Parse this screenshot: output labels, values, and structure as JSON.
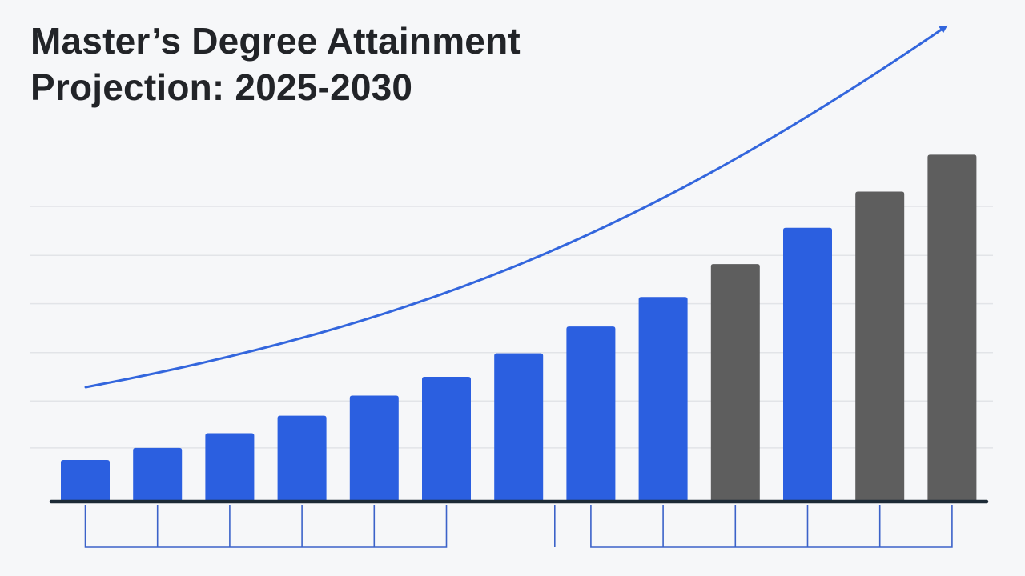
{
  "chart_data": {
    "type": "bar",
    "title_lines": [
      "Master’s Degree Attainment",
      "Projection: 2025-2030"
    ],
    "xlabel": "",
    "ylabel": "",
    "ylim": [
      0,
      620
    ],
    "grid": true,
    "gridlines": [
      80,
      150,
      222,
      295,
      367,
      440
    ],
    "values": [
      62,
      80,
      102,
      128,
      158,
      186,
      221,
      261,
      305,
      354,
      408,
      462,
      517
    ],
    "bar_kinds": [
      "actual",
      "actual",
      "actual",
      "actual",
      "actual",
      "actual",
      "actual",
      "actual",
      "actual",
      "projected",
      "actual",
      "projected",
      "projected"
    ],
    "trend_arrow": true,
    "colors": {
      "actual": "#2b5fe0",
      "projected": "#5e5e5e",
      "trend": "#3366dd",
      "axis": "#1c2a36",
      "grid": "#e2e4e8",
      "tick_box": "#3b62c9"
    },
    "x_label_boxes": [
      {
        "from": 0,
        "to": 5
      },
      {
        "from": 6.5,
        "to": 6.5
      },
      {
        "from": 7,
        "to": 12
      }
    ]
  }
}
